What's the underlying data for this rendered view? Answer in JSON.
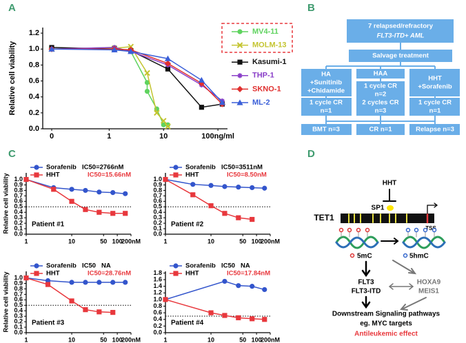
{
  "panel_labels": [
    "A",
    "B",
    "C",
    "D"
  ],
  "chart_data": [
    {
      "type": "line",
      "xscale": "log",
      "legend": "right",
      "ylabel": "Relative cell viability",
      "xlim": [
        0.06,
        150
      ],
      "xticks": [
        0,
        1,
        10,
        {
          "value": 100,
          "label": "100ng/ml"
        }
      ],
      "ylim": [
        0,
        1.27
      ],
      "yticks": [
        {
          "value": 0,
          "label": "0.0"
        },
        0.2,
        0.4,
        0.6,
        0.8,
        {
          "value": 1,
          "label": "1.0"
        },
        1.2
      ],
      "series": [
        {
          "name": "MV4-11",
          "color": "#5fd35f",
          "marker": "circle",
          "x": [
            0,
            1.25,
            2.5,
            5,
            5,
            7.5,
            10,
            12
          ],
          "values": [
            1.0,
            1.02,
            0.97,
            0.58,
            0.47,
            0.25,
            0.05,
            0.05
          ]
        },
        {
          "name": "MOLM-13",
          "color": "#c4c430",
          "marker": "x",
          "x": [
            0,
            1.25,
            2.5,
            5,
            7.5,
            10,
            12
          ],
          "values": [
            1.0,
            1.01,
            1.03,
            0.7,
            0.2,
            0.1,
            0.03
          ]
        },
        {
          "name": "Kasumi-1",
          "color": "#111111",
          "marker": "square",
          "x": [
            0,
            1.25,
            2.5,
            12,
            50,
            120
          ],
          "values": [
            1.02,
            1.0,
            0.98,
            0.75,
            0.27,
            0.31
          ]
        },
        {
          "name": "THP-1",
          "color": "#8a3fc8",
          "marker": "star",
          "x": [
            0,
            1.25,
            2.5,
            12,
            50,
            120
          ],
          "values": [
            1.0,
            1.02,
            0.97,
            0.8,
            0.55,
            0.35
          ]
        },
        {
          "name": "SKNO-1",
          "color": "#e0302f",
          "marker": "diamond",
          "x": [
            0,
            1.25,
            2.5,
            12,
            50,
            120
          ],
          "values": [
            1.0,
            1.0,
            0.99,
            0.82,
            0.57,
            0.31
          ]
        },
        {
          "name": "ML-2",
          "color": "#3a5fd8",
          "marker": "triangle",
          "x": [
            0,
            1.25,
            2.5,
            12,
            50,
            120
          ],
          "values": [
            1.0,
            0.99,
            0.97,
            0.88,
            0.61,
            0.33
          ]
        }
      ]
    },
    {
      "type": "line",
      "xscale": "log",
      "legend": "top",
      "ylabel": "Relative cell viability",
      "annotation": "Patient #1",
      "reference_line": 0.5,
      "xlim": [
        1,
        200
      ],
      "xticks": [
        1,
        10,
        50,
        100,
        {
          "value": 200,
          "label": "200nM"
        }
      ],
      "ylim": [
        0,
        1.12
      ],
      "yticks": [
        {
          "value": 0,
          "label": "0.0"
        },
        0.1,
        0.2,
        0.3,
        0.4,
        0.5,
        0.6,
        0.7,
        0.8,
        0.9,
        {
          "value": 1,
          "label": "1.0"
        }
      ],
      "series": [
        {
          "name": "Sorafenib",
          "label": "IC50=2766nM",
          "color": "#3355cc",
          "marker": "circle",
          "x": [
            1,
            4,
            10,
            20,
            40,
            80,
            150
          ],
          "values": [
            1.0,
            0.85,
            0.82,
            0.8,
            0.77,
            0.76,
            0.74
          ]
        },
        {
          "name": "HHT",
          "label": "IC50=15.66nM",
          "color": "#e8383d",
          "marker": "square",
          "x": [
            1,
            4,
            10,
            20,
            40,
            80,
            150
          ],
          "values": [
            1.0,
            0.82,
            0.6,
            0.45,
            0.4,
            0.38,
            0.38
          ]
        }
      ]
    },
    {
      "type": "line",
      "xscale": "log",
      "legend": "top",
      "annotation": "Patient #2",
      "reference_line": 0.5,
      "xlim": [
        1,
        200
      ],
      "xticks": [
        1,
        10,
        50,
        100,
        {
          "value": 200,
          "label": "200nM"
        }
      ],
      "ylim": [
        0,
        1.12
      ],
      "yticks": [
        {
          "value": 0,
          "label": "0.0"
        },
        0.1,
        0.2,
        0.3,
        0.4,
        0.5,
        0.6,
        0.7,
        0.8,
        0.9,
        {
          "value": 1,
          "label": "1.0"
        }
      ],
      "series": [
        {
          "name": "Sorafenib",
          "label": "IC50=3511nM",
          "color": "#3355cc",
          "marker": "circle",
          "x": [
            1,
            4,
            10,
            20,
            40,
            80,
            150
          ],
          "values": [
            1.0,
            0.91,
            0.89,
            0.87,
            0.86,
            0.85,
            0.84
          ]
        },
        {
          "name": "HHT",
          "label": "IC50=8.50nM",
          "color": "#e8383d",
          "marker": "square",
          "x": [
            1,
            4,
            10,
            20,
            40,
            80
          ],
          "values": [
            1.0,
            0.72,
            0.52,
            0.38,
            0.3,
            0.27
          ]
        }
      ]
    },
    {
      "type": "line",
      "xscale": "log",
      "legend": "top",
      "ylabel": "Relative cell viability",
      "annotation": "Patient #3",
      "reference_line": 0.5,
      "xlim": [
        1,
        200
      ],
      "xticks": [
        1,
        10,
        50,
        100,
        {
          "value": 200,
          "label": "200nM"
        }
      ],
      "ylim": [
        0,
        1.12
      ],
      "yticks": [
        {
          "value": 0,
          "label": "0.0"
        },
        0.1,
        0.2,
        0.3,
        0.4,
        0.5,
        0.6,
        0.7,
        0.8,
        0.9,
        {
          "value": 1,
          "label": "1.0"
        }
      ],
      "series": [
        {
          "name": "Sorafenib",
          "label": "IC50   NA",
          "color": "#3355cc",
          "marker": "circle",
          "x": [
            1,
            3,
            10,
            20,
            40,
            80,
            150
          ],
          "values": [
            1.0,
            0.95,
            0.92,
            0.92,
            0.92,
            0.92,
            0.92
          ]
        },
        {
          "name": "HHT",
          "label": "IC50=28.76nM",
          "color": "#e8383d",
          "marker": "square",
          "x": [
            1,
            3,
            10,
            20,
            40,
            80
          ],
          "values": [
            1.0,
            0.88,
            0.58,
            0.42,
            0.38,
            0.37
          ]
        }
      ]
    },
    {
      "type": "line",
      "xscale": "log",
      "legend": "top",
      "annotation": "Patient #4",
      "reference_line": 0.5,
      "xlim": [
        1,
        200
      ],
      "xticks": [
        1,
        10,
        50,
        100,
        {
          "value": 200,
          "label": "200nM"
        }
      ],
      "ylim": [
        0,
        1.85
      ],
      "yticks": [
        {
          "value": 0,
          "label": "0.0"
        },
        0.2,
        0.4,
        0.6,
        0.8,
        {
          "value": 1,
          "label": "1.0"
        },
        1.2,
        1.4,
        1.6,
        1.8
      ],
      "series": [
        {
          "name": "Sorafenib",
          "label": "IC50   NA",
          "color": "#3355cc",
          "marker": "circle",
          "x": [
            1,
            20,
            40,
            80,
            150
          ],
          "values": [
            1.0,
            1.55,
            1.42,
            1.4,
            1.3
          ]
        },
        {
          "name": "HHT",
          "label": "IC50=17.84nM",
          "color": "#e8383d",
          "marker": "square",
          "x": [
            1,
            10,
            20,
            40,
            80,
            150
          ],
          "values": [
            1.0,
            0.6,
            0.52,
            0.45,
            0.42,
            0.4
          ]
        }
      ]
    }
  ],
  "flowchart": {
    "title_box": [
      "7 relapsed/refractory",
      "FLT3-ITD+ AML"
    ],
    "salvage": "Salvage treatment",
    "arms": [
      {
        "treatment": [
          "HA",
          "+Sunitinib",
          "+Chidamide"
        ],
        "response": [
          "1 cycle CR",
          "n=1"
        ]
      },
      {
        "treatment": [
          "HAA"
        ],
        "response": [
          "1 cycle CR",
          "n=2",
          "2 cycles CR",
          "n=3"
        ]
      },
      {
        "treatment": [
          "HHT",
          "+Sorafenib"
        ],
        "response": [
          "1 cycle CR",
          "n=1"
        ]
      }
    ],
    "outcomes": [
      "BMT n=3",
      "CR n=1",
      "Relapse n=3"
    ]
  },
  "mechanism": {
    "drug": "HHT",
    "factor": "SP1",
    "gene": "TET1",
    "tss": "TSS",
    "marks": [
      "5mC",
      "5hmC"
    ],
    "targets": [
      "FLT3",
      "FLT3-ITD"
    ],
    "partners": [
      "HOXA9",
      "MEIS1"
    ],
    "pathways": [
      "Downstream Signaling pathways",
      "eg. MYC targets"
    ],
    "effect": "Antileukemic effect"
  }
}
